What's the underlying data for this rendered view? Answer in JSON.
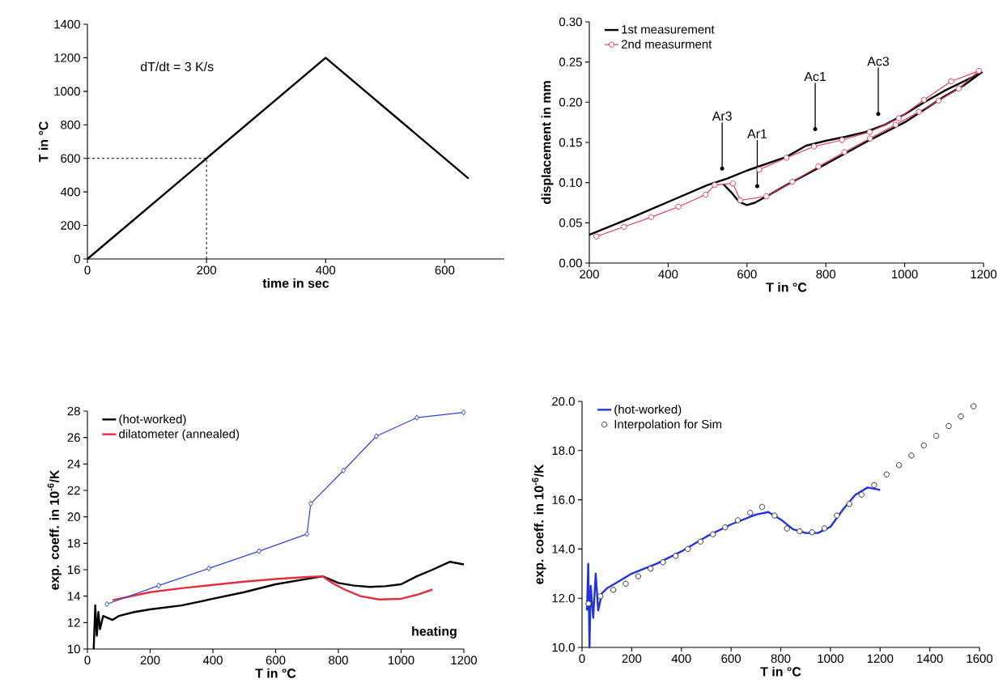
{
  "chart_data": [
    {
      "type": "line",
      "xlabel": "time in sec",
      "ylabel": "T in °C",
      "annotations": [
        "dT/dt = 3 K/s"
      ],
      "xlim": [
        0,
        700
      ],
      "ylim": [
        0,
        1400
      ],
      "xticks": [
        0,
        200,
        400,
        600
      ],
      "yticks": [
        0,
        200,
        400,
        600,
        800,
        1000,
        1200,
        1400
      ],
      "ref_lines": [
        {
          "axis": "x",
          "value": 200,
          "color": "#000000",
          "line_style": "dashed"
        },
        {
          "axis": "y",
          "value": 600,
          "color": "#000000",
          "line_style": "dashed"
        }
      ],
      "series": [
        {
          "color": "#000000",
          "x": [
            0,
            400,
            640
          ],
          "values": [
            0,
            1200,
            480
          ]
        }
      ]
    },
    {
      "type": "line",
      "xlabel": "T in °C",
      "ylabel": "displacement in mm",
      "legend": "top left",
      "xlim": [
        200,
        1200
      ],
      "ylim": [
        0,
        0.3
      ],
      "xticks": [
        200,
        400,
        600,
        800,
        1000,
        1200
      ],
      "yticks": [
        {
          "value": 0,
          "label": "0.00"
        },
        {
          "value": 0.05,
          "label": "0.05"
        },
        {
          "value": 0.1,
          "label": "0.10"
        },
        {
          "value": 0.15,
          "label": "0.15"
        },
        {
          "value": 0.2,
          "label": "0.20"
        },
        {
          "value": 0.25,
          "label": "0.25"
        },
        {
          "value": 0.3,
          "label": "0.30"
        }
      ],
      "annotations": [
        "Ar3",
        "Ar1",
        "Ac1",
        "Ac3"
      ],
      "series": [
        {
          "name": "1st measurement",
          "color": "#000000",
          "x": [
            200,
            300,
            400,
            500,
            550,
            600,
            700,
            750,
            800,
            850,
            900,
            950,
            1000,
            1050,
            1100,
            1150,
            1195,
            1150,
            1100,
            1000,
            900,
            800,
            700,
            650,
            620,
            600,
            580,
            560,
            540
          ],
          "values": [
            0.035,
            0.055,
            0.076,
            0.097,
            0.105,
            0.115,
            0.132,
            0.146,
            0.152,
            0.157,
            0.163,
            0.172,
            0.185,
            0.2,
            0.214,
            0.226,
            0.237,
            0.221,
            0.207,
            0.175,
            0.15,
            0.123,
            0.097,
            0.083,
            0.075,
            0.072,
            0.076,
            0.088,
            0.098
          ]
        },
        {
          "name": "2nd measurment",
          "color": "#e0405a",
          "marker": "circle",
          "x": [
            218,
            288,
            357,
            426,
            495,
            518,
            564,
            583,
            649,
            715,
            781,
            847,
            912,
            977,
            1036,
            1086,
            1137,
            1188,
            1118,
            1049,
            985,
            911,
            841,
            770,
            700,
            631
          ],
          "values": [
            0.033,
            0.045,
            0.057,
            0.07,
            0.085,
            0.097,
            0.099,
            0.078,
            0.083,
            0.101,
            0.12,
            0.138,
            0.155,
            0.172,
            0.188,
            0.202,
            0.217,
            0.239,
            0.226,
            0.203,
            0.18,
            0.163,
            0.153,
            0.145,
            0.131,
            0.116
          ]
        }
      ]
    },
    {
      "type": "line",
      "xlabel": "T in °C",
      "ylabel": "exp. coeff. in 10$^{-6}$/K",
      "legend": "top left",
      "annotations": [
        "heating"
      ],
      "xlim": [
        0,
        1200
      ],
      "ylim": [
        10,
        28
      ],
      "xticks": [
        0,
        200,
        400,
        600,
        800,
        1000,
        1200
      ],
      "yticks": [
        10,
        12,
        14,
        16,
        18,
        20,
        22,
        24,
        26,
        28
      ],
      "series": [
        {
          "name": "(hot-worked)",
          "color": "#000000",
          "x": [
            20,
            25,
            30,
            35,
            40,
            50,
            80,
            100,
            150,
            200,
            300,
            400,
            500,
            600,
            700,
            750,
            800,
            850,
            900,
            950,
            1000,
            1050,
            1100,
            1156,
            1200
          ],
          "values": [
            10,
            13.3,
            11,
            12.8,
            11.5,
            12.5,
            12.2,
            12.5,
            12.8,
            13.0,
            13.3,
            13.8,
            14.3,
            14.9,
            15.3,
            15.5,
            15.0,
            14.8,
            14.7,
            14.75,
            14.9,
            15.5,
            16.0,
            16.6,
            16.4
          ]
        },
        {
          "name": "dilatometer (annealed)",
          "color": "#e03040",
          "x": [
            80,
            200,
            300,
            400,
            500,
            600,
            700,
            750,
            780,
            820,
            870,
            930,
            1000,
            1050,
            1100
          ],
          "values": [
            13.7,
            14.3,
            14.6,
            14.85,
            15.1,
            15.3,
            15.45,
            15.5,
            15.0,
            14.5,
            14.0,
            13.75,
            13.8,
            14.1,
            14.5
          ]
        },
        {
          "color": "#3344cc",
          "marker": "diamond",
          "x": [
            62,
            227,
            387,
            547,
            700,
            712,
            816,
            921,
            1050,
            1199
          ],
          "values": [
            13.4,
            14.8,
            16.1,
            17.4,
            18.7,
            21.0,
            23.5,
            26.1,
            27.5,
            27.9
          ]
        }
      ]
    },
    {
      "type": "line",
      "xlabel": "T in °C",
      "ylabel": "exp. coeff. in 10$^{-6}$/K",
      "legend": "top left",
      "xlim": [
        0,
        1600
      ],
      "ylim": [
        10,
        20
      ],
      "xticks": [
        0,
        200,
        400,
        600,
        800,
        1000,
        1200,
        1400,
        1600
      ],
      "yticks": [
        {
          "value": 10,
          "label": "10.0"
        },
        {
          "value": 12,
          "label": "12.0"
        },
        {
          "value": 14,
          "label": "14.0"
        },
        {
          "value": 16,
          "label": "16.0"
        },
        {
          "value": 18,
          "label": "18.0"
        },
        {
          "value": 20,
          "label": "20.0"
        }
      ],
      "series": [
        {
          "name": "(hot-worked)",
          "color": "#2233dd",
          "x": [
            20,
            25,
            30,
            35,
            45,
            55,
            65,
            80,
            100,
            150,
            200,
            300,
            400,
            500,
            600,
            700,
            750,
            800,
            850,
            900,
            950,
            1000,
            1050,
            1100,
            1150,
            1200
          ],
          "values": [
            11.5,
            13.4,
            10.0,
            12.5,
            11.2,
            13.0,
            11.5,
            12.2,
            12.4,
            12.7,
            13.0,
            13.4,
            13.9,
            14.5,
            15.0,
            15.4,
            15.5,
            15.2,
            14.8,
            14.65,
            14.65,
            14.9,
            15.6,
            16.2,
            16.5,
            16.4
          ]
        },
        {
          "name": "Interpolation for Sim",
          "type": "scatter",
          "color": "#333333",
          "marker": "circle",
          "x": [
            26,
            74,
            126,
            176,
            226,
            276,
            326,
            377,
            426,
            477,
            527,
            576,
            627,
            677,
            725,
            775,
            825,
            876,
            926,
            976,
            1026,
            1076,
            1125,
            1176,
            1226,
            1276,
            1326,
            1376,
            1426,
            1476,
            1525,
            1576
          ],
          "values": [
            11.78,
            12.08,
            12.34,
            12.59,
            12.89,
            13.2,
            13.46,
            13.72,
            14.0,
            14.3,
            14.6,
            14.88,
            15.17,
            15.47,
            15.71,
            15.36,
            14.83,
            14.72,
            14.68,
            14.84,
            15.36,
            15.83,
            16.21,
            16.6,
            17.03,
            17.41,
            17.8,
            18.21,
            18.6,
            19.0,
            19.39,
            19.8
          ]
        }
      ]
    }
  ]
}
